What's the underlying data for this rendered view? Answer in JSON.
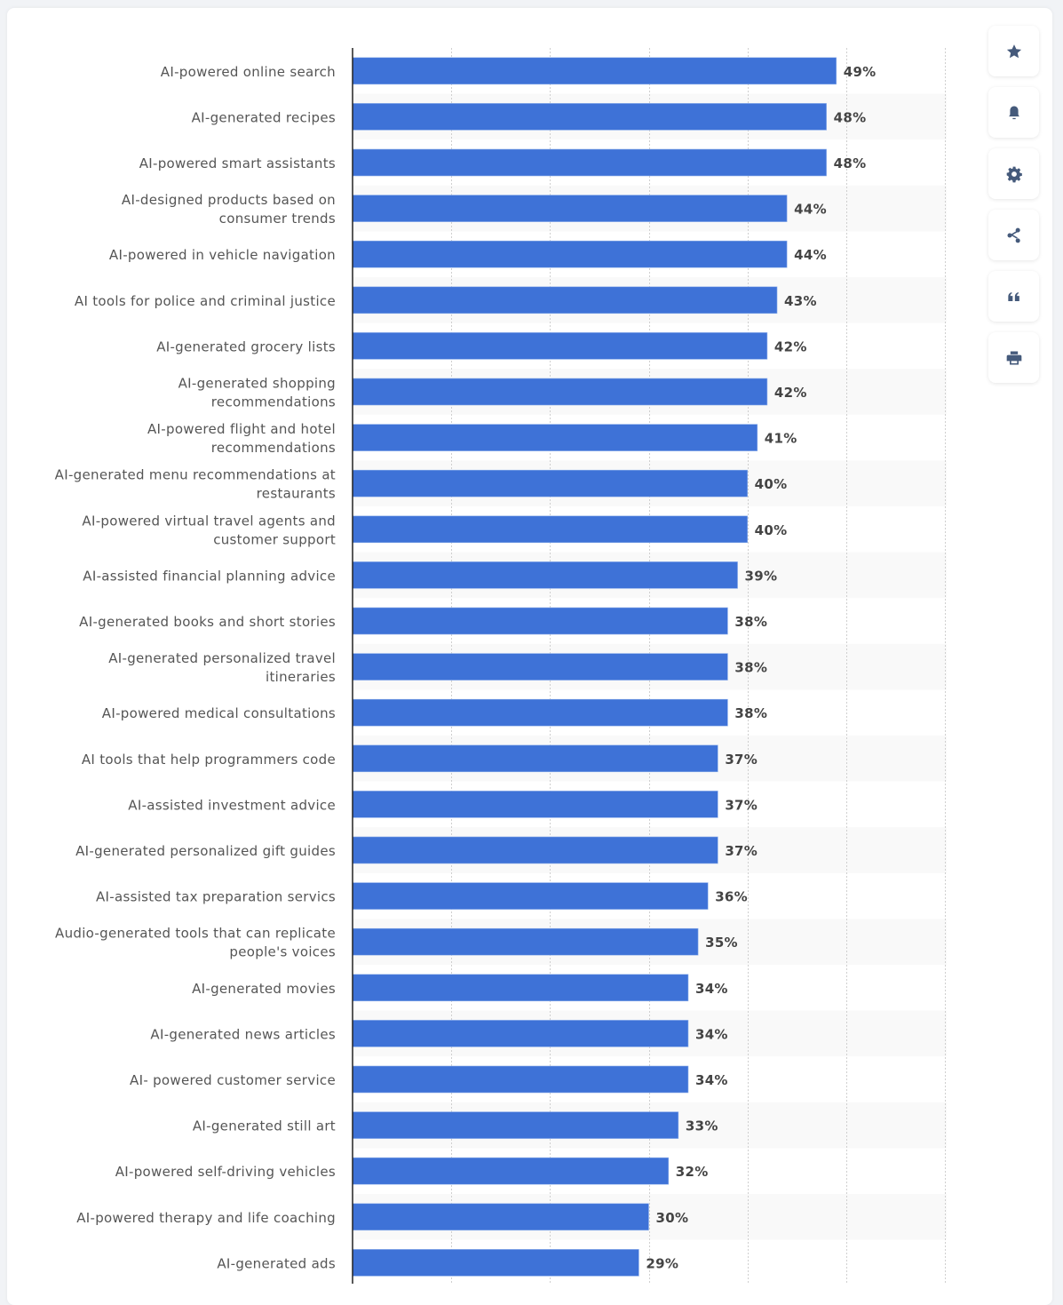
{
  "chart_data": {
    "type": "bar",
    "orientation": "horizontal",
    "title": "",
    "xlabel": "",
    "ylabel": "",
    "xlim": [
      0,
      60
    ],
    "grid": true,
    "value_suffix": "%",
    "bar_color": "#3e72d7",
    "categories": [
      [
        "AI-powered online search"
      ],
      [
        "AI-generated recipes"
      ],
      [
        "AI-powered smart assistants"
      ],
      [
        "AI-designed products based on",
        "consumer trends"
      ],
      [
        "AI-powered in vehicle navigation"
      ],
      [
        "AI tools for police and criminal justice"
      ],
      [
        "AI-generated grocery lists"
      ],
      [
        "AI-generated shopping",
        "recommendations"
      ],
      [
        "AI-powered flight and hotel",
        "recommendations"
      ],
      [
        "AI-generated menu recommendations at",
        "restaurants"
      ],
      [
        "AI-powered virtual travel agents and",
        "customer support"
      ],
      [
        "AI-assisted financial planning advice"
      ],
      [
        "AI-generated books and short stories"
      ],
      [
        "AI-generated personalized travel",
        "itineraries"
      ],
      [
        "AI-powered medical consultations"
      ],
      [
        "AI tools that help programmers code"
      ],
      [
        "AI-assisted investment advice"
      ],
      [
        "AI-generated personalized gift guides"
      ],
      [
        "AI-assisted tax preparation servics"
      ],
      [
        "Audio-generated tools that can replicate",
        "people's voices"
      ],
      [
        "AI-generated movies"
      ],
      [
        "AI-generated news articles"
      ],
      [
        "AI- powered customer service"
      ],
      [
        "AI-generated still art"
      ],
      [
        "AI-powered self-driving vehicles"
      ],
      [
        "AI-powered therapy and life coaching"
      ],
      [
        "AI-generated ads"
      ]
    ],
    "values": [
      49,
      48,
      48,
      44,
      44,
      43,
      42,
      42,
      41,
      40,
      40,
      39,
      38,
      38,
      38,
      37,
      37,
      37,
      36,
      35,
      34,
      34,
      34,
      33,
      32,
      30,
      29
    ]
  },
  "toolbar": [
    {
      "icon": "star-icon",
      "label": "Add to favorites"
    },
    {
      "icon": "bell-icon",
      "label": "Notifications"
    },
    {
      "icon": "gear-icon",
      "label": "Settings"
    },
    {
      "icon": "share-icon",
      "label": "Share"
    },
    {
      "icon": "quote-icon",
      "label": "Cite"
    },
    {
      "icon": "print-icon",
      "label": "Print"
    }
  ]
}
